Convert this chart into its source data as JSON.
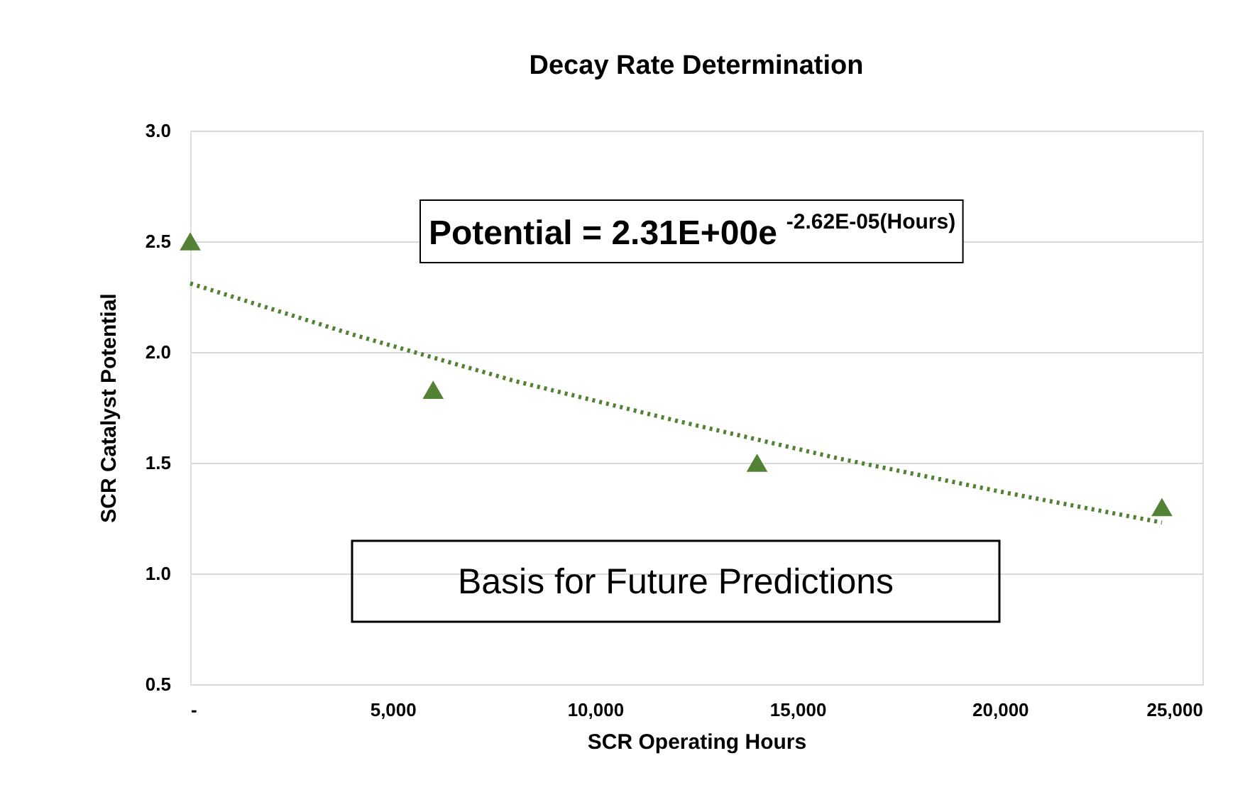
{
  "chart_data": {
    "type": "scatter",
    "title": "Decay Rate Determination",
    "xlabel": "SCR Operating Hours",
    "ylabel": "SCR Catalyst Potential",
    "xlim": [
      0,
      25000
    ],
    "xticks": [
      {
        "value": 0,
        "label": "-"
      },
      {
        "value": 5000,
        "label": "5,000"
      },
      {
        "value": 10000,
        "label": "10,000"
      },
      {
        "value": 15000,
        "label": "15,000"
      },
      {
        "value": 20000,
        "label": "20,000"
      },
      {
        "value": 25000,
        "label": "25,000"
      }
    ],
    "ylim": [
      0.5,
      3.0
    ],
    "yticks": [
      {
        "value": 0.5,
        "label": "0.5"
      },
      {
        "value": 1.0,
        "label": "1.0"
      },
      {
        "value": 1.5,
        "label": "1.5"
      },
      {
        "value": 2.0,
        "label": "2.0"
      },
      {
        "value": 2.5,
        "label": "2.5"
      },
      {
        "value": 3.0,
        "label": "3.0"
      }
    ],
    "grid": "y",
    "marker": "triangle",
    "series": [
      {
        "type": "scatter",
        "color": "#548235",
        "x": [
          0,
          6000,
          14000,
          24000
        ],
        "values": [
          2.5,
          1.83,
          1.5,
          1.3
        ]
      },
      {
        "type": "line",
        "color": "#548235",
        "line_style": "dotted",
        "marker": "none",
        "x": [
          0,
          4000,
          8000,
          12000,
          16000,
          20000,
          24000
        ],
        "values": [
          2.31,
          2.08,
          1.87,
          1.69,
          1.52,
          1.37,
          1.23
        ]
      }
    ],
    "annotations": [
      "Potential = 2.31E+00e$^{-2.62E-05(Hours)}$",
      "Basis for Future Predictions"
    ]
  }
}
